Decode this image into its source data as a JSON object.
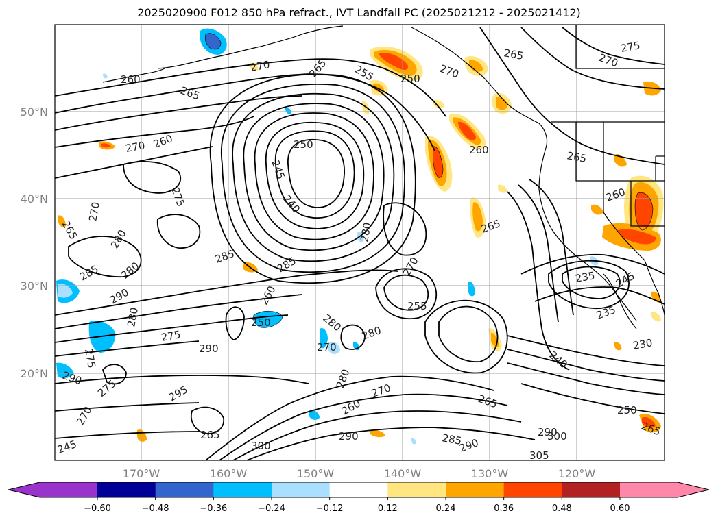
{
  "title": "2025020900 F012 850 hPa refract., IVT Landfall PC (2025021212 - 2025021412)",
  "lat_labels": [
    "50°N",
    "40°N",
    "30°N",
    "20°N"
  ],
  "lon_labels": [
    "170°W",
    "160°W",
    "150°W",
    "140°W",
    "130°W",
    "120°W"
  ],
  "colorbar": {
    "ticks": [
      "−0.60",
      "−0.48",
      "−0.36",
      "−0.24",
      "−0.12",
      "0.12",
      "0.24",
      "0.36",
      "0.48",
      "0.60"
    ],
    "colors": [
      "#9933cc",
      "#000099",
      "#3366cc",
      "#00bfff",
      "#aadfff",
      "#ffffff",
      "#ffe680",
      "#ffa500",
      "#ff4500",
      "#b22222",
      "#ff88aa"
    ],
    "under_color": "#9933cc",
    "over_color": "#ff88aa"
  },
  "contour_labels": [
    "260",
    "265",
    "270",
    "260",
    "270",
    "265",
    "255",
    "250",
    "265",
    "275",
    "270",
    "250",
    "260",
    "270",
    "245",
    "240",
    "275",
    "270",
    "265",
    "280",
    "280",
    "285",
    "280",
    "285",
    "285",
    "270",
    "255",
    "280",
    "270",
    "280",
    "275",
    "290",
    "265",
    "260",
    "265",
    "235",
    "245",
    "235",
    "230",
    "270",
    "260",
    "280",
    "265",
    "290",
    "300",
    "305",
    "290",
    "300",
    "285",
    "290",
    "265",
    "245",
    "250",
    "260",
    "270",
    "290",
    "275",
    "275",
    "280",
    "295",
    "240",
    "250",
    "290",
    "265"
  ]
}
